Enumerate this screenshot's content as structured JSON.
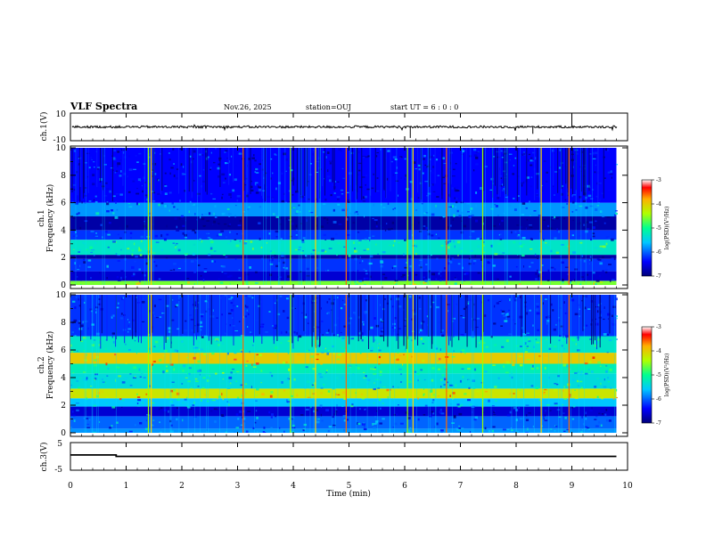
{
  "header": {
    "title": "VLF Spectra",
    "date": "Nov.26, 2025",
    "station": "station=OUJ",
    "start": "start  UT =   6 : 0  : 0"
  },
  "chart_data": [
    {
      "type": "line",
      "id": "ch1_waveform",
      "ylabel": "ch.1(V)",
      "ylim": [
        -10,
        10
      ],
      "y_tick_labels": [
        "10",
        "-10"
      ],
      "xlim": [
        0,
        10
      ],
      "x_tick_labels": [
        "0",
        "1",
        "2",
        "3",
        "4",
        "5",
        "6",
        "7",
        "8",
        "9",
        "10"
      ],
      "baseline": 0,
      "series": [
        {
          "name": "ch.1",
          "values": [
            0
          ]
        }
      ]
    },
    {
      "type": "heatmap",
      "id": "ch1_spectrogram",
      "ylabel_channel": "ch.1",
      "ylabel": "Frequency (kHz)",
      "xlim": [
        0,
        9.8
      ],
      "ylim": [
        0,
        10
      ],
      "y_tick_labels": [
        "0",
        "2",
        "4",
        "6",
        "8",
        "10"
      ],
      "colorbar": {
        "label": "log(PSD)(V²/Hz)",
        "range": [
          -7,
          -3
        ],
        "tick_labels": [
          "-3",
          "-4",
          "-5",
          "-6",
          "-7"
        ]
      },
      "bands_khz": [
        {
          "f0": 0.0,
          "f1": 0.3,
          "level": -4.6
        },
        {
          "f0": 0.3,
          "f1": 1.0,
          "level": -6.6
        },
        {
          "f0": 1.0,
          "f1": 1.9,
          "level": -6.2
        },
        {
          "f0": 1.9,
          "f1": 2.2,
          "level": -6.8
        },
        {
          "f0": 2.2,
          "f1": 3.3,
          "level": -5.3
        },
        {
          "f0": 3.3,
          "f1": 4.0,
          "level": -6.2
        },
        {
          "f0": 4.0,
          "f1": 5.0,
          "level": -6.8
        },
        {
          "f0": 5.0,
          "f1": 6.0,
          "level": -5.8
        },
        {
          "f0": 6.0,
          "f1": 10.0,
          "level": -6.4
        }
      ],
      "impulse_times_min": [
        1.4,
        1.45,
        3.1,
        3.95,
        4.4,
        4.95,
        6.05,
        6.15,
        6.75,
        7.4,
        8.45,
        8.95
      ]
    },
    {
      "type": "heatmap",
      "id": "ch2_spectrogram",
      "ylabel_channel": "ch.2",
      "ylabel": "Frequency (kHz)",
      "xlim": [
        0,
        9.8
      ],
      "ylim": [
        0,
        10
      ],
      "y_tick_labels": [
        "0",
        "2",
        "4",
        "6",
        "8",
        "10"
      ],
      "colorbar": {
        "label": "log(PSD)(V²/Hz)",
        "range": [
          -7,
          -3
        ],
        "tick_labels": [
          "-3",
          "-4",
          "-5",
          "-6",
          "-7"
        ]
      },
      "bands_khz": [
        {
          "f0": 0.0,
          "f1": 0.3,
          "level": -5.8
        },
        {
          "f0": 0.3,
          "f1": 1.2,
          "level": -6.0
        },
        {
          "f0": 1.2,
          "f1": 1.9,
          "level": -6.6
        },
        {
          "f0": 1.9,
          "f1": 2.5,
          "level": -5.6
        },
        {
          "f0": 2.5,
          "f1": 3.2,
          "level": -4.2
        },
        {
          "f0": 3.2,
          "f1": 4.3,
          "level": -5.4
        },
        {
          "f0": 4.3,
          "f1": 5.0,
          "level": -5.2
        },
        {
          "f0": 5.0,
          "f1": 5.8,
          "level": -4.0
        },
        {
          "f0": 5.8,
          "f1": 7.0,
          "level": -5.3
        },
        {
          "f0": 7.0,
          "f1": 10.0,
          "level": -6.2
        }
      ],
      "impulse_times_min": [
        1.4,
        1.45,
        3.1,
        3.95,
        4.4,
        4.95,
        6.05,
        6.15,
        6.75,
        7.4,
        8.45,
        8.95
      ]
    },
    {
      "type": "line",
      "id": "ch3_waveform",
      "ylabel": "ch.3(V)",
      "ylim": [
        -5,
        5
      ],
      "y_tick_labels": [
        "5",
        "-5"
      ],
      "xlim": [
        0,
        10
      ],
      "x_tick_labels": [
        "0",
        "1",
        "2",
        "3",
        "4",
        "5",
        "6",
        "7",
        "8",
        "9",
        "10"
      ],
      "xlabel": "Time (min)",
      "series": [
        {
          "name": "ch.3",
          "x": [
            0,
            0.82,
            0.82,
            9.8
          ],
          "values": [
            0.5,
            0.5,
            0.0,
            0.0
          ]
        }
      ]
    }
  ]
}
